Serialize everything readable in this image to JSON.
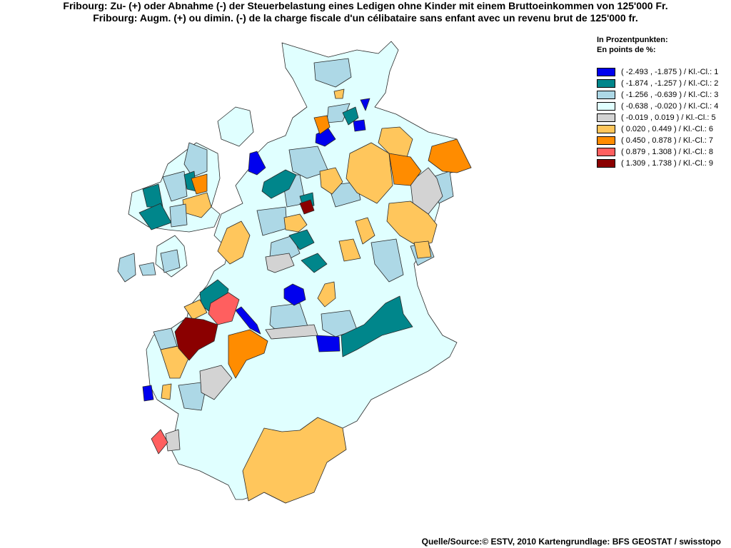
{
  "title": {
    "de": "Fribourg: Zu- (+) oder Abnahme (-) der Steuerbelastung eines Ledigen ohne Kinder mit einem Bruttoeinkommen von 125'000 Fr.",
    "fr": "Fribourg: Augm. (+) ou dimin. (-) de la charge fiscale d'un célibataire sans enfant avec un revenu brut de 125'000 fr."
  },
  "legend": {
    "heading_de": "In Prozentpunkten:",
    "heading_fr": "En points de %:",
    "classes": [
      {
        "label": "( -2.493 , -1.875 ) / Kl.-Cl.: 1",
        "color": "#0000ee"
      },
      {
        "label": "( -1.874 , -1.257 ) / Kl.-Cl.: 2",
        "color": "#00868b"
      },
      {
        "label": "( -1.256 , -0.639 ) / Kl.-Cl.: 3",
        "color": "#add8e6"
      },
      {
        "label": "( -0.638 , -0.020 ) / Kl.-Cl.: 4",
        "color": "#e0ffff"
      },
      {
        "label": "( -0.019 , 0.019 ) / Kl.-Cl.: 5",
        "color": "#d3d3d3"
      },
      {
        "label": "( 0.020 , 0.449 ) / Kl.-Cl.: 6",
        "color": "#ffc65c"
      },
      {
        "label": "( 0.450 , 0.878 ) / Kl.-Cl.: 7",
        "color": "#ff8c00"
      },
      {
        "label": "( 0.879 , 1.308 ) / Kl.-Cl.: 8",
        "color": "#ff5f5f"
      },
      {
        "label": "( 1.309 , 1.738 ) / Kl.-Cl.: 9",
        "color": "#8b0000"
      }
    ]
  },
  "source": "Quelle/Source:© ESTV, 2010 Kartengrundlage: BFS GEOSTAT / swisstopo"
}
